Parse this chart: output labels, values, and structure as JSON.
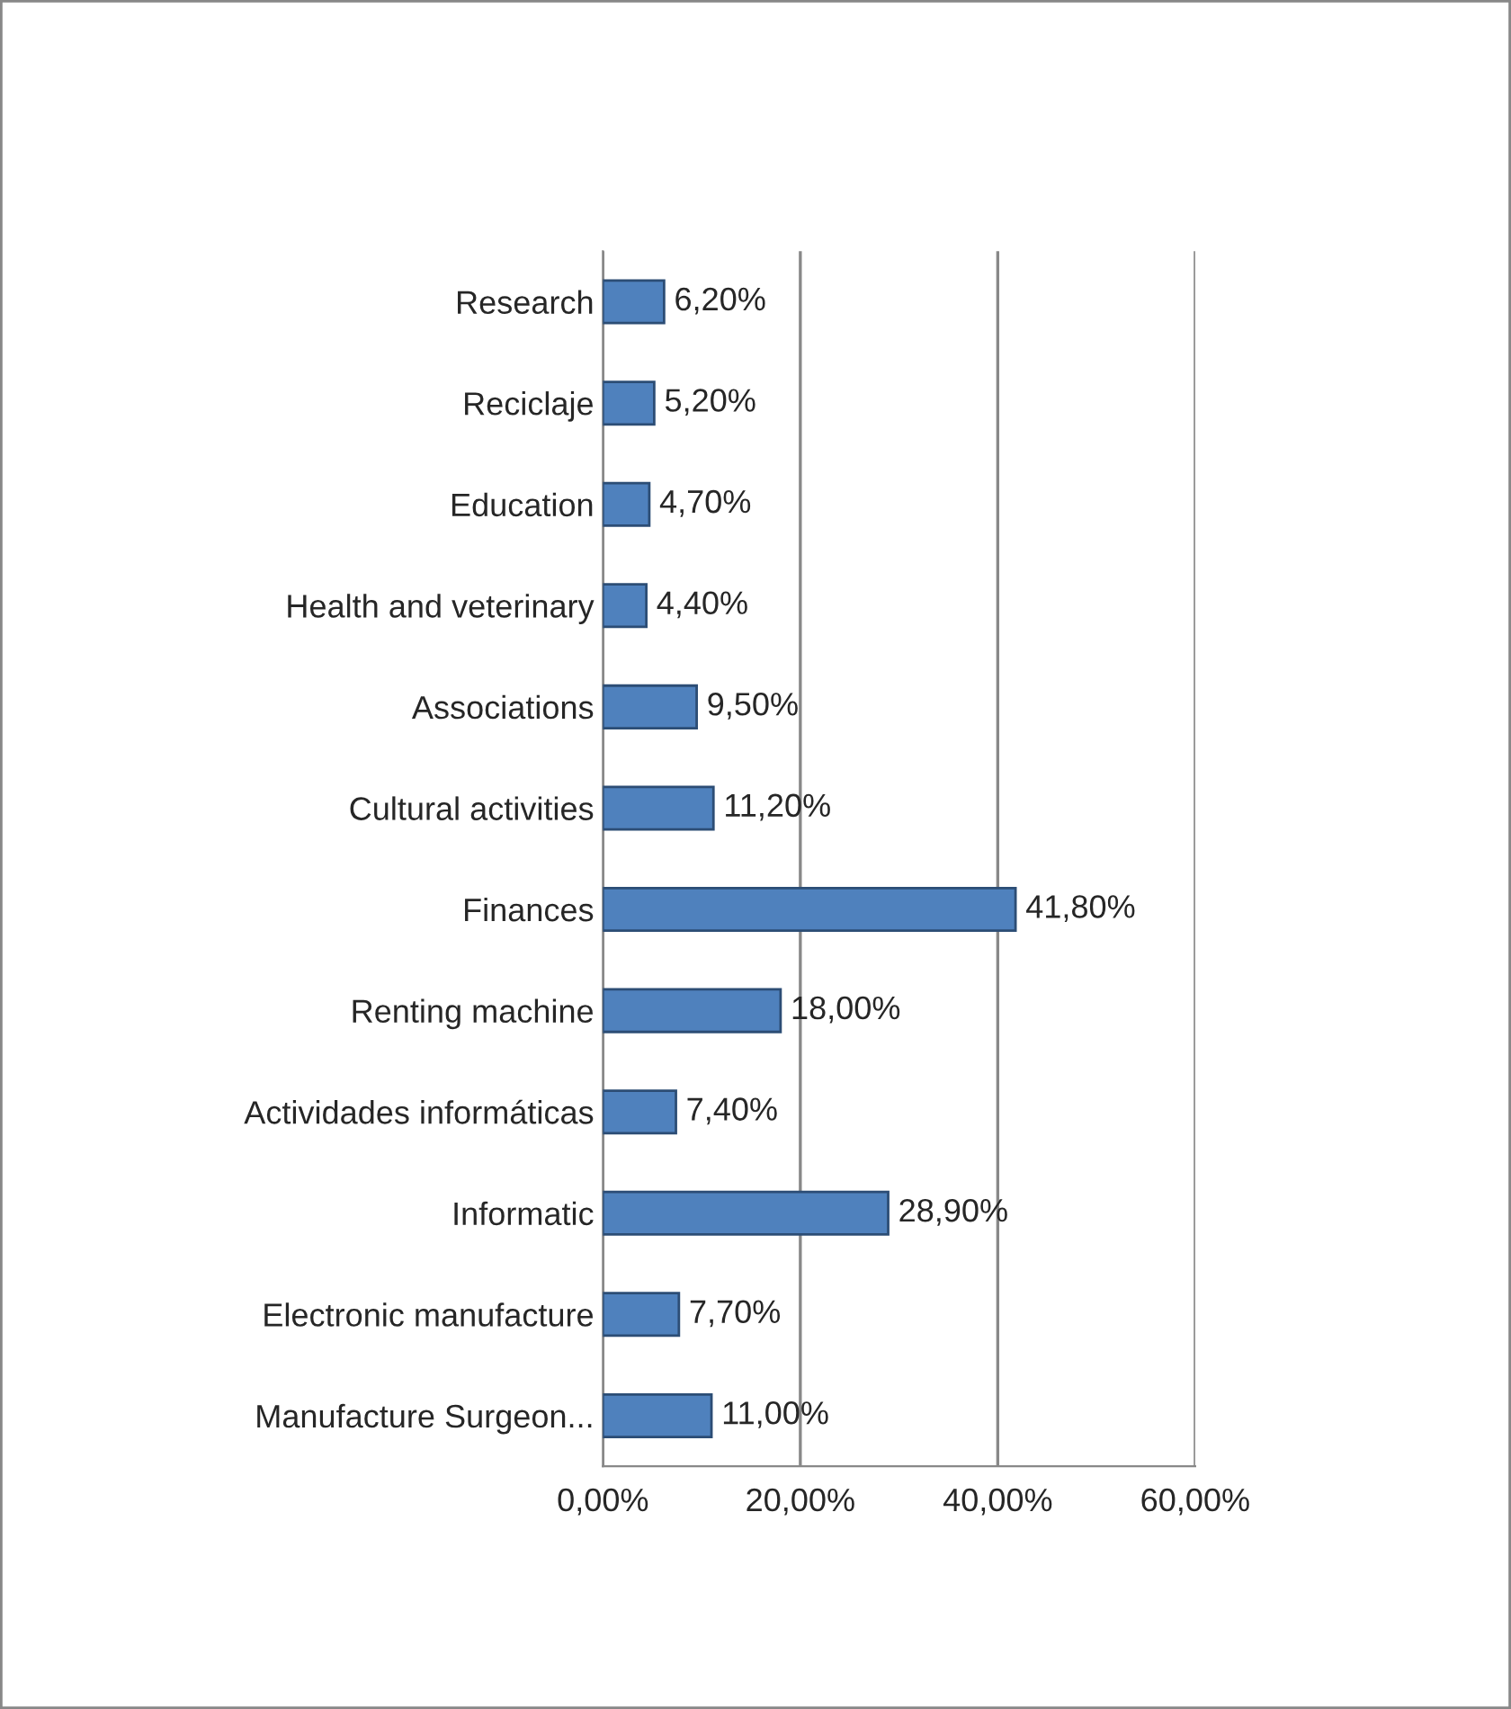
{
  "chart_data": {
    "type": "bar",
    "orientation": "horizontal",
    "categories": [
      "Research",
      "Reciclaje",
      "Education",
      "Health and veterinary",
      "Associations",
      "Cultural activities",
      "Finances",
      "Renting machine",
      "Actividades informáticas",
      "Informatic",
      "Electronic manufacture",
      "Manufacture Surgeon..."
    ],
    "values": [
      6.2,
      5.2,
      4.7,
      4.4,
      9.5,
      11.2,
      41.8,
      18.0,
      7.4,
      28.9,
      7.7,
      11.0
    ],
    "value_labels": [
      "6,20%",
      "5,20%",
      "4,70%",
      "4,40%",
      "9,50%",
      "11,20%",
      "41,80%",
      "18,00%",
      "7,40%",
      "28,90%",
      "7,70%",
      "11,00%"
    ],
    "color": "#4f81bd",
    "xlim": [
      0,
      60
    ],
    "xticks": [
      {
        "value": 0,
        "label": "0,00%"
      },
      {
        "value": 20,
        "label": "20,00%"
      },
      {
        "value": 40,
        "label": "40,00%"
      },
      {
        "value": 60,
        "label": "60,00%"
      }
    ],
    "grid": "x"
  }
}
